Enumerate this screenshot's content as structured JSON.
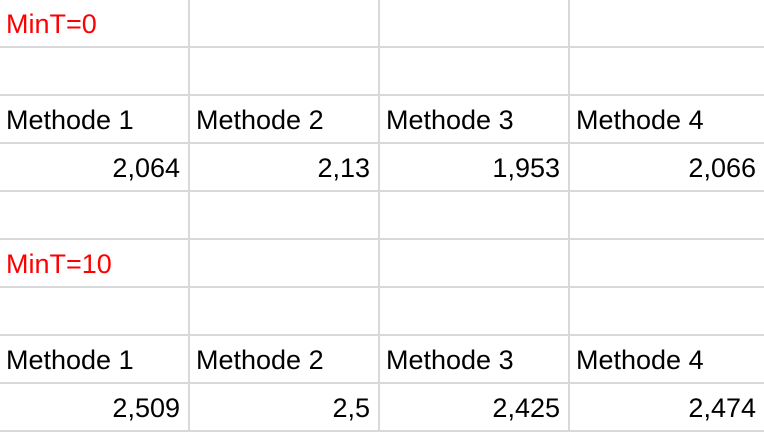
{
  "colors": {
    "section_label": "#ff0000",
    "grid_line": "#d9d9d9",
    "text": "#000000"
  },
  "blocks": [
    {
      "label": "MinT=0",
      "headers": [
        "Methode 1",
        "Methode 2",
        "Methode 3",
        "Methode 4"
      ],
      "values": [
        "2,064",
        "2,13",
        "1,953",
        "2,066"
      ]
    },
    {
      "label": "MinT=10",
      "headers": [
        "Methode 1",
        "Methode 2",
        "Methode 3",
        "Methode 4"
      ],
      "values": [
        "2,509",
        "2,5",
        "2,425",
        "2,474"
      ]
    }
  ]
}
